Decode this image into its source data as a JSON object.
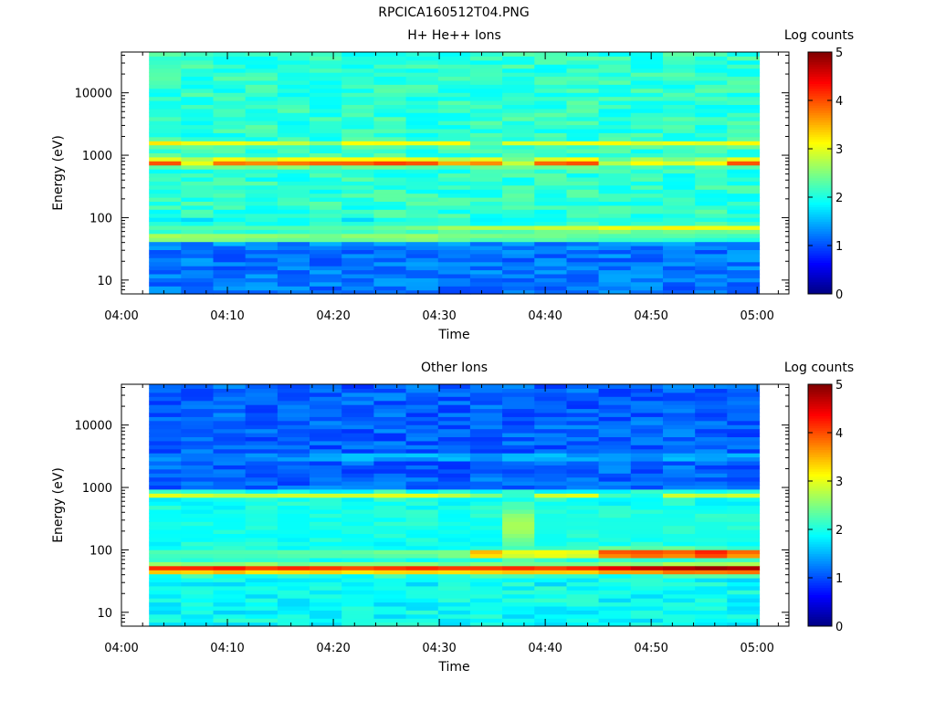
{
  "figure_title": "RPCICA160512T04.PNG",
  "colors": {
    "colormap": "jet",
    "axis": "#000000",
    "background": "#ffffff"
  },
  "chart_data": [
    {
      "type": "heatmap",
      "title": "H+ He++ Ions",
      "xlabel": "Time",
      "ylabel": "Energy (eV)",
      "y_scale": "log",
      "xlim": [
        "04:00",
        "05:03"
      ],
      "ylim": [
        6,
        45000
      ],
      "x_ticks": [
        "04:00",
        "04:10",
        "04:20",
        "04:30",
        "04:40",
        "04:50",
        "05:00"
      ],
      "y_ticks": [
        "10",
        "100",
        "1000",
        "10000"
      ],
      "colorbar": {
        "label": "Log counts",
        "range": [
          0,
          5
        ],
        "ticks": [
          "0",
          "1",
          "2",
          "3",
          "4",
          "5"
        ]
      },
      "data_span": [
        "04:02.6",
        "05:00.2"
      ],
      "time_bins": 19,
      "background_band": {
        "energy_range": [
          100,
          45000
        ],
        "level": 2.1
      },
      "low_energy_level": {
        "energy_range": [
          6,
          45
        ],
        "level": 1.2
      },
      "features": [
        {
          "label": "main band",
          "energy": 780,
          "width_decades": 0.06,
          "levels": [
            4.1,
            3.1,
            3.9,
            3.8,
            3.9,
            4.0,
            4.0,
            4.2,
            4.1,
            3.6,
            3.8,
            2.9,
            4.0,
            4.1,
            2.8,
            3.2,
            3.0,
            3.2,
            4.1
          ]
        },
        {
          "label": "upper band",
          "energy": 1550,
          "width_decades": 0.04,
          "levels": [
            3.3,
            3.1,
            3.1,
            3.0,
            2.9,
            2.6,
            3.2,
            3.2,
            3.1,
            3.2,
            2.2,
            3.0,
            3.0,
            3.1,
            3.2,
            3.0,
            3.1,
            3.0,
            3.2
          ]
        },
        {
          "label": "low band",
          "energy": 48,
          "width_decades": 0.06,
          "levels": [
            3.0,
            2.9,
            2.9,
            2.8,
            2.7,
            2.7,
            2.8,
            2.9,
            2.9,
            2.7,
            2.6,
            2.6,
            2.6,
            2.5,
            2.4,
            2.4,
            2.4,
            2.3,
            2.3
          ]
        },
        {
          "label": "rising band",
          "energy": 68,
          "width_decades": 0.06,
          "levels": [
            2.3,
            2.3,
            2.3,
            2.3,
            2.3,
            2.3,
            2.3,
            2.4,
            2.5,
            2.7,
            2.8,
            2.8,
            2.9,
            2.9,
            3.1,
            3.0,
            3.2,
            3.1,
            3.1
          ]
        }
      ]
    },
    {
      "type": "heatmap",
      "title": "Other Ions",
      "xlabel": "Time",
      "ylabel": "Energy (eV)",
      "y_scale": "log",
      "xlim": [
        "04:00",
        "05:03"
      ],
      "ylim": [
        6,
        45000
      ],
      "x_ticks": [
        "04:00",
        "04:10",
        "04:20",
        "04:30",
        "04:40",
        "04:50",
        "05:00"
      ],
      "y_ticks": [
        "10",
        "100",
        "1000",
        "10000"
      ],
      "colorbar": {
        "label": "Log counts",
        "range": [
          0,
          5
        ],
        "ticks": [
          "0",
          "1",
          "2",
          "3",
          "4",
          "5"
        ]
      },
      "data_span": [
        "04:02.6",
        "05:00.2"
      ],
      "time_bins": 19,
      "background_band": {
        "energy_range": [
          1000,
          45000
        ],
        "level": 1.1
      },
      "mid_energy_level": {
        "energy_range": [
          100,
          1000
        ],
        "level": 1.9
      },
      "low_energy_level": {
        "energy_range": [
          6,
          40
        ],
        "level": 1.9
      },
      "features": [
        {
          "label": "main band",
          "energy": 760,
          "width_decades": 0.04,
          "levels": [
            3.0,
            2.9,
            2.8,
            2.8,
            2.9,
            2.9,
            2.9,
            3.0,
            3.0,
            2.8,
            2.5,
            2.0,
            2.9,
            3.0,
            2.2,
            2.0,
            2.9,
            2.8,
            2.9
          ]
        },
        {
          "label": "upper band",
          "energy": 3100,
          "width_decades": 0.03,
          "levels": [
            1.6,
            1.6,
            1.6,
            1.6,
            1.6,
            1.8,
            2.2,
            2.2,
            2.2,
            2.1,
            2.2,
            2.1,
            2.1,
            2.2,
            2.2,
            2.2,
            2.1,
            2.1,
            2.2
          ]
        },
        {
          "label": "energetic band",
          "energy": 50,
          "width_decades": 0.07,
          "levels": [
            4.3,
            4.3,
            4.4,
            4.2,
            4.3,
            4.2,
            4.1,
            4.2,
            4.3,
            4.2,
            4.2,
            4.3,
            4.2,
            4.3,
            4.6,
            4.8,
            4.9,
            5.0,
            4.9
          ]
        },
        {
          "label": "rising band",
          "energy": 88,
          "width_decades": 0.07,
          "levels": [
            2.3,
            2.3,
            2.3,
            2.3,
            2.4,
            2.4,
            2.4,
            2.5,
            2.5,
            2.6,
            3.7,
            3.2,
            3.3,
            3.2,
            4.3,
            4.4,
            4.3,
            4.6,
            4.2
          ]
        },
        {
          "label": "plume",
          "energy": 250,
          "width_decades": 0.35,
          "levels": [
            1.9,
            1.9,
            1.9,
            1.9,
            1.9,
            1.9,
            1.9,
            1.9,
            1.9,
            1.9,
            1.9,
            2.7,
            2.0,
            2.0,
            2.0,
            2.0,
            2.0,
            2.0,
            2.0
          ]
        }
      ]
    }
  ]
}
